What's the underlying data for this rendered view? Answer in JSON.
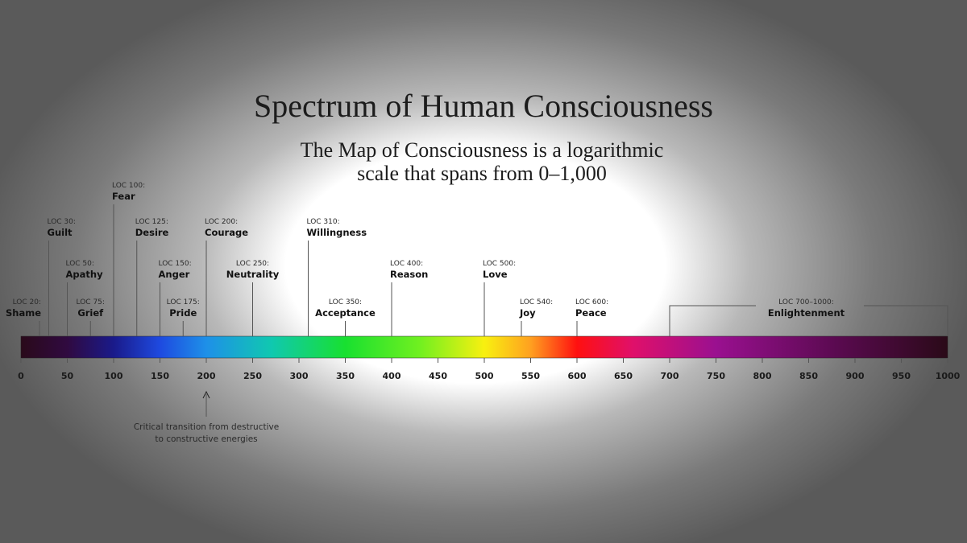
{
  "chart_data": {
    "type": "spectrum",
    "title": "Spectrum of Human Consciousness",
    "subtitle": [
      "The Map of Consciousness is a logarithmic",
      "scale that spans from 0–1,000"
    ],
    "xlim": [
      0,
      1000
    ],
    "xticks": [
      0,
      50,
      100,
      150,
      200,
      250,
      300,
      350,
      400,
      450,
      500,
      550,
      600,
      650,
      700,
      750,
      800,
      850,
      900,
      950,
      1000
    ],
    "markers": [
      {
        "x": 20,
        "label": "LOC 20:",
        "name": "Shame"
      },
      {
        "x": 30,
        "label": "LOC 30:",
        "name": "Guilt"
      },
      {
        "x": 50,
        "label": "LOC 50:",
        "name": "Apathy"
      },
      {
        "x": 75,
        "label": "LOC 75:",
        "name": "Grief"
      },
      {
        "x": 100,
        "label": "LOC 100:",
        "name": "Fear"
      },
      {
        "x": 125,
        "label": "LOC 125:",
        "name": "Desire"
      },
      {
        "x": 150,
        "label": "LOC 150:",
        "name": "Anger"
      },
      {
        "x": 175,
        "label": "LOC 175:",
        "name": "Pride"
      },
      {
        "x": 200,
        "label": "LOC 200:",
        "name": "Courage"
      },
      {
        "x": 250,
        "label": "LOC 250:",
        "name": "Neutrality"
      },
      {
        "x": 310,
        "label": "LOC 310:",
        "name": "Willingness"
      },
      {
        "x": 350,
        "label": "LOC 350:",
        "name": "Acceptance"
      },
      {
        "x": 400,
        "label": "LOC 400:",
        "name": "Reason"
      },
      {
        "x": 500,
        "label": "LOC 500:",
        "name": "Love"
      },
      {
        "x": 540,
        "label": "LOC 540:",
        "name": "Joy"
      },
      {
        "x": 600,
        "label": "LOC 600:",
        "name": "Peace"
      }
    ],
    "range_marker": {
      "from": 700,
      "to": 1000,
      "label": "LOC 700–1000:",
      "name": "Enlightenment"
    },
    "annotation": {
      "x": 200,
      "text": [
        "Critical transition from destructive",
        "to constructive energies"
      ]
    }
  }
}
